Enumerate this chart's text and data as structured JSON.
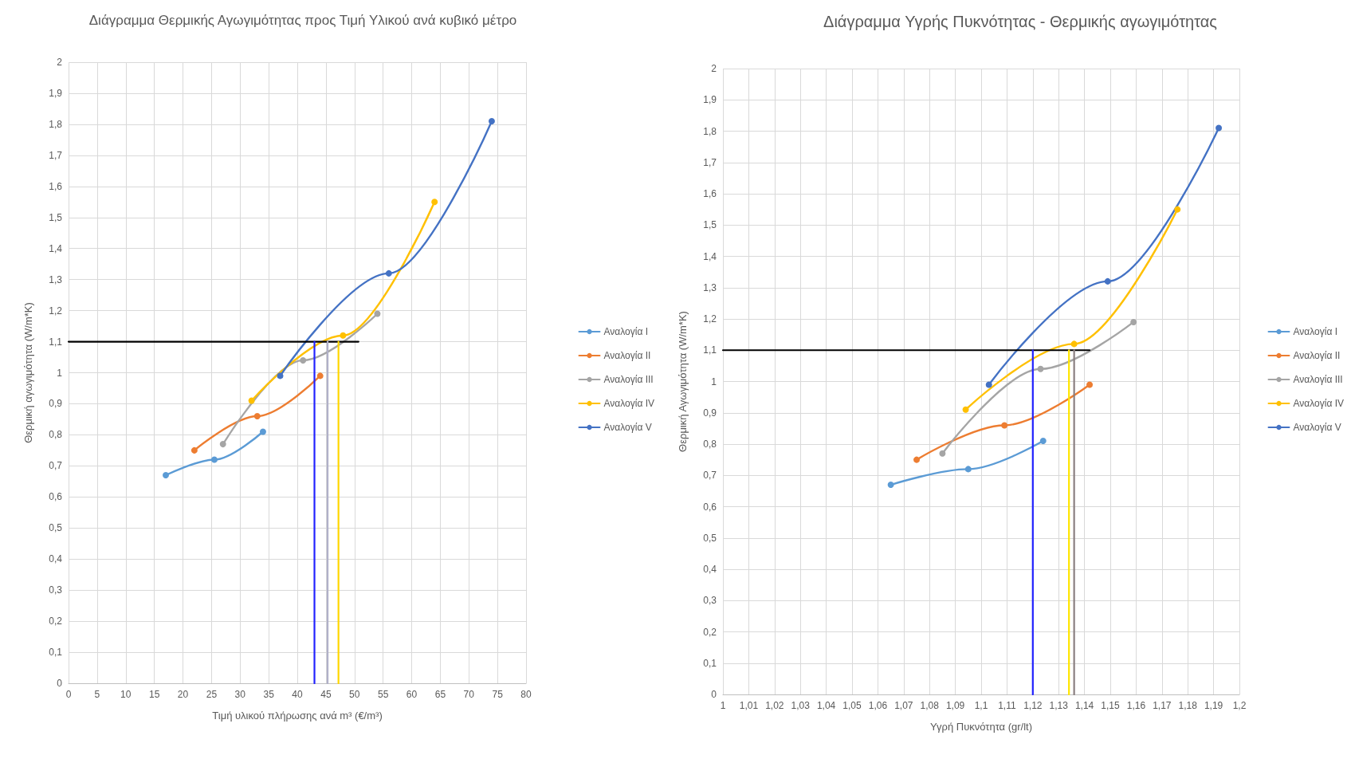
{
  "chart_data": [
    {
      "type": "line",
      "title": "Διάγραμμα Θερμικής Αγωγιμότητας προς Τιμή Υλικού ανά κυβικό μέτρο",
      "xlabel": "Τιμή υλικού πλήρωσης ανά m³ (€/m³)",
      "ylabel": "Θερμική αγωγιμότητα (W/m*K)",
      "xlim": [
        0,
        80
      ],
      "xticks": [
        0,
        5,
        10,
        15,
        20,
        25,
        30,
        35,
        40,
        45,
        50,
        55,
        60,
        65,
        70,
        75,
        80
      ],
      "ylim": [
        0,
        2
      ],
      "yticks": [
        0,
        {
          "value": 0.1,
          "label": "0,1"
        },
        {
          "value": 0.2,
          "label": "0,2"
        },
        {
          "value": 0.3,
          "label": "0,3"
        },
        {
          "value": 0.4,
          "label": "0,4"
        },
        {
          "value": 0.5,
          "label": "0,5"
        },
        {
          "value": 0.6,
          "label": "0,6"
        },
        {
          "value": 0.7,
          "label": "0,7"
        },
        {
          "value": 0.8,
          "label": "0,8"
        },
        {
          "value": 0.9,
          "label": "0,9"
        },
        1,
        {
          "value": 1.1,
          "label": "1,1"
        },
        {
          "value": 1.2,
          "label": "1,2"
        },
        {
          "value": 1.3,
          "label": "1,3"
        },
        {
          "value": 1.4,
          "label": "1,4"
        },
        {
          "value": 1.5,
          "label": "1,5"
        },
        {
          "value": 1.6,
          "label": "1,6"
        },
        {
          "value": 1.7,
          "label": "1,7"
        },
        {
          "value": 1.8,
          "label": "1,8"
        },
        {
          "value": 1.9,
          "label": "1,9"
        },
        2
      ],
      "grid": true,
      "legend": "right",
      "marker": "circle",
      "series": [
        {
          "name": "Αναλογία I",
          "color": "#5b9bd5",
          "x": [
            17,
            25.5,
            34
          ],
          "values": [
            0.67,
            0.72,
            0.81
          ]
        },
        {
          "name": "Αναλογία II",
          "color": "#ed7d31",
          "x": [
            22,
            33,
            44
          ],
          "values": [
            0.75,
            0.86,
            0.99
          ]
        },
        {
          "name": "Αναλογία III",
          "color": "#a5a5a5",
          "x": [
            27,
            41,
            54
          ],
          "values": [
            0.77,
            1.04,
            1.19
          ]
        },
        {
          "name": "Αναλογία IV",
          "color": "#ffc000",
          "x": [
            32,
            48,
            64
          ],
          "values": [
            0.91,
            1.12,
            1.55
          ]
        },
        {
          "name": "Αναλογία V",
          "color": "#4472c4",
          "x": [
            37,
            56,
            74
          ],
          "values": [
            0.99,
            1.32,
            1.81
          ]
        },
        {
          "color": "#000000",
          "marker": "none",
          "x": [
            0,
            50.7
          ],
          "values": [
            1.1,
            1.1
          ]
        },
        {
          "color": "#2222ff",
          "marker": "none",
          "x": [
            43,
            43
          ],
          "values": [
            0,
            1.1
          ]
        },
        {
          "color": "#b0b0c8",
          "marker": "none",
          "x": [
            45.3,
            45.3
          ],
          "values": [
            0,
            1.1
          ]
        },
        {
          "color": "#ffd700",
          "marker": "none",
          "x": [
            47.2,
            47.2
          ],
          "values": [
            0,
            1.1
          ]
        }
      ]
    },
    {
      "type": "line",
      "title": "Διάγραμμα Υγρής Πυκνότητας - Θερμικής αγωγιμότητας",
      "xlabel": "Υγρή Πυκνότητα (gr/lt)",
      "ylabel": "Θερμική Αγωγιμότητα (W/m*K)",
      "xlim": [
        1,
        1.2
      ],
      "xticks": [
        1,
        {
          "value": 1.01,
          "label": "1,01"
        },
        {
          "value": 1.02,
          "label": "1,02"
        },
        {
          "value": 1.03,
          "label": "1,03"
        },
        {
          "value": 1.04,
          "label": "1,04"
        },
        {
          "value": 1.05,
          "label": "1,05"
        },
        {
          "value": 1.06,
          "label": "1,06"
        },
        {
          "value": 1.07,
          "label": "1,07"
        },
        {
          "value": 1.08,
          "label": "1,08"
        },
        {
          "value": 1.09,
          "label": "1,09"
        },
        {
          "value": 1.1,
          "label": "1,1"
        },
        {
          "value": 1.11,
          "label": "1,11"
        },
        {
          "value": 1.12,
          "label": "1,12"
        },
        {
          "value": 1.13,
          "label": "1,13"
        },
        {
          "value": 1.14,
          "label": "1,14"
        },
        {
          "value": 1.15,
          "label": "1,15"
        },
        {
          "value": 1.16,
          "label": "1,16"
        },
        {
          "value": 1.17,
          "label": "1,17"
        },
        {
          "value": 1.18,
          "label": "1,18"
        },
        {
          "value": 1.19,
          "label": "1,19"
        },
        {
          "value": 1.2,
          "label": "1,2"
        }
      ],
      "ylim": [
        0,
        2
      ],
      "yticks": [
        0,
        {
          "value": 0.1,
          "label": "0,1"
        },
        {
          "value": 0.2,
          "label": "0,2"
        },
        {
          "value": 0.3,
          "label": "0,3"
        },
        {
          "value": 0.4,
          "label": "0,4"
        },
        {
          "value": 0.5,
          "label": "0,5"
        },
        {
          "value": 0.6,
          "label": "0,6"
        },
        {
          "value": 0.7,
          "label": "0,7"
        },
        {
          "value": 0.8,
          "label": "0,8"
        },
        {
          "value": 0.9,
          "label": "0,9"
        },
        1,
        {
          "value": 1.1,
          "label": "1,1"
        },
        {
          "value": 1.2,
          "label": "1,2"
        },
        {
          "value": 1.3,
          "label": "1,3"
        },
        {
          "value": 1.4,
          "label": "1,4"
        },
        {
          "value": 1.5,
          "label": "1,5"
        },
        {
          "value": 1.6,
          "label": "1,6"
        },
        {
          "value": 1.7,
          "label": "1,7"
        },
        {
          "value": 1.8,
          "label": "1,8"
        },
        {
          "value": 1.9,
          "label": "1,9"
        },
        2
      ],
      "grid": true,
      "legend": "right",
      "marker": "circle",
      "series": [
        {
          "name": "Αναλογία I",
          "color": "#5b9bd5",
          "x": [
            1.065,
            1.095,
            1.124
          ],
          "values": [
            0.67,
            0.72,
            0.81
          ]
        },
        {
          "name": "Αναλογία II",
          "color": "#ed7d31",
          "x": [
            1.075,
            1.109,
            1.142
          ],
          "values": [
            0.75,
            0.86,
            0.99
          ]
        },
        {
          "name": "Αναλογία III",
          "color": "#a5a5a5",
          "x": [
            1.085,
            1.123,
            1.159
          ],
          "values": [
            0.77,
            1.04,
            1.19
          ]
        },
        {
          "name": "Αναλογία IV",
          "color": "#ffc000",
          "x": [
            1.094,
            1.136,
            1.176
          ],
          "values": [
            0.91,
            1.12,
            1.55
          ]
        },
        {
          "name": "Αναλογία V",
          "color": "#4472c4",
          "x": [
            1.103,
            1.149,
            1.192
          ],
          "values": [
            0.99,
            1.32,
            1.81
          ]
        },
        {
          "color": "#000000",
          "marker": "none",
          "x": [
            1,
            1.142
          ],
          "values": [
            1.1,
            1.1
          ]
        },
        {
          "color": "#2222ff",
          "marker": "none",
          "x": [
            1.12,
            1.12
          ],
          "values": [
            0,
            1.1
          ]
        },
        {
          "color": "#ffe600",
          "marker": "none",
          "x": [
            1.134,
            1.134
          ],
          "values": [
            0,
            1.1
          ]
        },
        {
          "color": "#8a7f80",
          "marker": "none",
          "x": [
            1.136,
            1.136
          ],
          "values": [
            0,
            1.1
          ]
        }
      ]
    }
  ]
}
